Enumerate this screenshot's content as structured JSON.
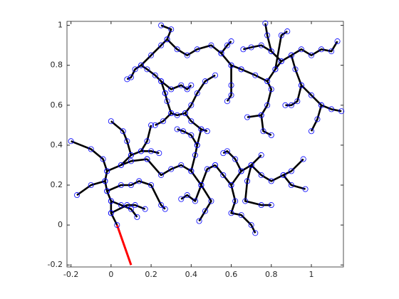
{
  "chart_data": {
    "type": "tree",
    "xlim": [
      -0.22,
      1.16
    ],
    "ylim": [
      -0.21,
      1.02
    ],
    "xticks": [
      -0.2,
      0,
      0.2,
      0.4,
      0.6,
      0.8,
      1
    ],
    "yticks": [
      -0.2,
      0,
      0.2,
      0.4,
      0.6,
      0.8,
      1
    ],
    "line_color": "#000000",
    "marker_color": "#0000ff",
    "path": {
      "color": "#ff0000",
      "x": [
        0.03,
        0.1
      ],
      "y": [
        0,
        -0.2
      ]
    },
    "branches": [
      {
        "x": [
          0.03,
          0.0,
          0.0,
          -0.02,
          -0.03,
          -0.02,
          -0.04,
          -0.1,
          -0.2
        ],
        "y": [
          0,
          0.06,
          0.12,
          0.17,
          0.22,
          0.27,
          0.33,
          0.38,
          0.42
        ]
      },
      {
        "x": [
          -0.03,
          -0.1,
          -0.17
        ],
        "y": [
          0.22,
          0.2,
          0.15
        ]
      },
      {
        "x": [
          0.0,
          0.05,
          0.1,
          0.13
        ],
        "y": [
          0.12,
          0.1,
          0.08,
          0.04
        ]
      },
      {
        "x": [
          0.0,
          0.08,
          0.12,
          0.17
        ],
        "y": [
          0.06,
          0.1,
          0.1,
          0.08
        ]
      },
      {
        "x": [
          -0.02,
          0.05,
          0.1,
          0.14,
          0.2,
          0.25,
          0.27
        ],
        "y": [
          0.17,
          0.2,
          0.2,
          0.22,
          0.2,
          0.1,
          0.08
        ]
      },
      {
        "x": [
          -0.02,
          0.05,
          0.1,
          0.18
        ],
        "y": [
          0.27,
          0.3,
          0.32,
          0.33
        ]
      },
      {
        "x": [
          0.05,
          0.1,
          0.15,
          0.2,
          0.24
        ],
        "y": [
          0.3,
          0.35,
          0.37,
          0.37,
          0.36
        ]
      },
      {
        "x": [
          0.1,
          0.08,
          0.06,
          0.0
        ],
        "y": [
          0.35,
          0.42,
          0.47,
          0.52
        ]
      },
      {
        "x": [
          0.15,
          0.18,
          0.2
        ],
        "y": [
          0.37,
          0.42,
          0.5
        ]
      },
      {
        "x": [
          0.18,
          0.25,
          0.3,
          0.35,
          0.4,
          0.45,
          0.48,
          0.52
        ],
        "y": [
          0.33,
          0.25,
          0.28,
          0.3,
          0.27,
          0.2,
          0.28,
          0.3
        ]
      },
      {
        "x": [
          0.45,
          0.42,
          0.38,
          0.35
        ],
        "y": [
          0.2,
          0.12,
          0.15,
          0.13
        ]
      },
      {
        "x": [
          0.45,
          0.5,
          0.47,
          0.44
        ],
        "y": [
          0.2,
          0.12,
          0.07,
          0.02
        ]
      },
      {
        "x": [
          0.52,
          0.56,
          0.6,
          0.62,
          0.6,
          0.65,
          0.7,
          0.72
        ],
        "y": [
          0.3,
          0.25,
          0.2,
          0.12,
          0.06,
          0.05,
          0.0,
          -0.04
        ]
      },
      {
        "x": [
          0.6,
          0.65,
          0.7,
          0.75
        ],
        "y": [
          0.2,
          0.27,
          0.3,
          0.35
        ]
      },
      {
        "x": [
          0.7,
          0.75,
          0.8,
          0.86,
          0.9,
          0.96
        ],
        "y": [
          0.3,
          0.25,
          0.22,
          0.25,
          0.27,
          0.33
        ]
      },
      {
        "x": [
          0.86,
          0.9,
          0.97
        ],
        "y": [
          0.25,
          0.2,
          0.18
        ]
      },
      {
        "x": [
          0.7,
          0.68,
          0.67,
          0.75,
          0.8
        ],
        "y": [
          0.3,
          0.22,
          0.12,
          0.1,
          0.1
        ]
      },
      {
        "x": [
          0.65,
          0.62,
          0.58,
          0.56
        ],
        "y": [
          0.27,
          0.33,
          0.37,
          0.36
        ]
      },
      {
        "x": [
          0.4,
          0.42,
          0.43,
          0.45,
          0.48
        ],
        "y": [
          0.27,
          0.35,
          0.4,
          0.48,
          0.47
        ]
      },
      {
        "x": [
          0.43,
          0.4,
          0.36,
          0.33
        ],
        "y": [
          0.4,
          0.45,
          0.47,
          0.48
        ]
      },
      {
        "x": [
          0.45,
          0.4,
          0.37,
          0.33,
          0.3,
          0.28,
          0.27
        ],
        "y": [
          0.48,
          0.52,
          0.56,
          0.55,
          0.56,
          0.62,
          0.66
        ]
      },
      {
        "x": [
          0.37,
          0.4,
          0.43,
          0.47,
          0.52
        ],
        "y": [
          0.56,
          0.6,
          0.66,
          0.72,
          0.75
        ]
      },
      {
        "x": [
          0.27,
          0.25,
          0.22,
          0.18,
          0.15,
          0.12,
          0.1,
          0.08
        ],
        "y": [
          0.66,
          0.72,
          0.75,
          0.78,
          0.8,
          0.78,
          0.74,
          0.73
        ]
      },
      {
        "x": [
          0.15,
          0.2,
          0.25,
          0.28,
          0.3,
          0.25
        ],
        "y": [
          0.8,
          0.85,
          0.9,
          0.93,
          0.98,
          1.0
        ]
      },
      {
        "x": [
          0.28,
          0.33,
          0.38,
          0.43,
          0.5,
          0.55,
          0.6,
          0.65
        ],
        "y": [
          0.93,
          0.88,
          0.85,
          0.88,
          0.9,
          0.86,
          0.8,
          0.78
        ]
      },
      {
        "x": [
          0.55,
          0.58,
          0.6
        ],
        "y": [
          0.86,
          0.9,
          0.92
        ]
      },
      {
        "x": [
          0.65,
          0.72,
          0.78,
          0.8,
          0.78,
          0.75,
          0.68
        ],
        "y": [
          0.78,
          0.75,
          0.72,
          0.68,
          0.6,
          0.55,
          0.54
        ]
      },
      {
        "x": [
          0.75,
          0.76,
          0.8
        ],
        "y": [
          0.55,
          0.47,
          0.45
        ]
      },
      {
        "x": [
          0.78,
          0.82,
          0.85,
          0.9,
          0.95,
          1.0,
          1.05,
          1.1,
          1.13
        ],
        "y": [
          0.72,
          0.78,
          0.82,
          0.85,
          0.88,
          0.85,
          0.88,
          0.87,
          0.92
        ]
      },
      {
        "x": [
          0.85,
          0.8,
          0.75,
          0.7,
          0.66
        ],
        "y": [
          0.82,
          0.87,
          0.9,
          0.89,
          0.88
        ]
      },
      {
        "x": [
          0.8,
          0.78,
          0.77
        ],
        "y": [
          0.87,
          0.95,
          1.01
        ]
      },
      {
        "x": [
          0.9,
          0.92,
          0.95,
          0.93,
          0.9,
          0.87
        ],
        "y": [
          0.85,
          0.78,
          0.7,
          0.62,
          0.6,
          0.6
        ]
      },
      {
        "x": [
          0.95,
          1.0,
          1.05,
          1.1,
          1.15
        ],
        "y": [
          0.7,
          0.65,
          0.6,
          0.58,
          0.57
        ]
      },
      {
        "x": [
          1.05,
          1.03,
          1.0
        ],
        "y": [
          0.6,
          0.53,
          0.47
        ]
      },
      {
        "x": [
          0.82,
          0.85,
          0.88
        ],
        "y": [
          0.78,
          0.95,
          0.97
        ]
      },
      {
        "x": [
          0.6,
          0.6,
          0.6,
          0.58
        ],
        "y": [
          0.8,
          0.7,
          0.65,
          0.62
        ]
      },
      {
        "x": [
          0.25,
          0.3,
          0.35,
          0.38,
          0.4
        ],
        "y": [
          0.72,
          0.68,
          0.7,
          0.68,
          0.7
        ]
      },
      {
        "x": [
          0.3,
          0.26,
          0.22
        ],
        "y": [
          0.56,
          0.52,
          0.5
        ]
      }
    ]
  }
}
